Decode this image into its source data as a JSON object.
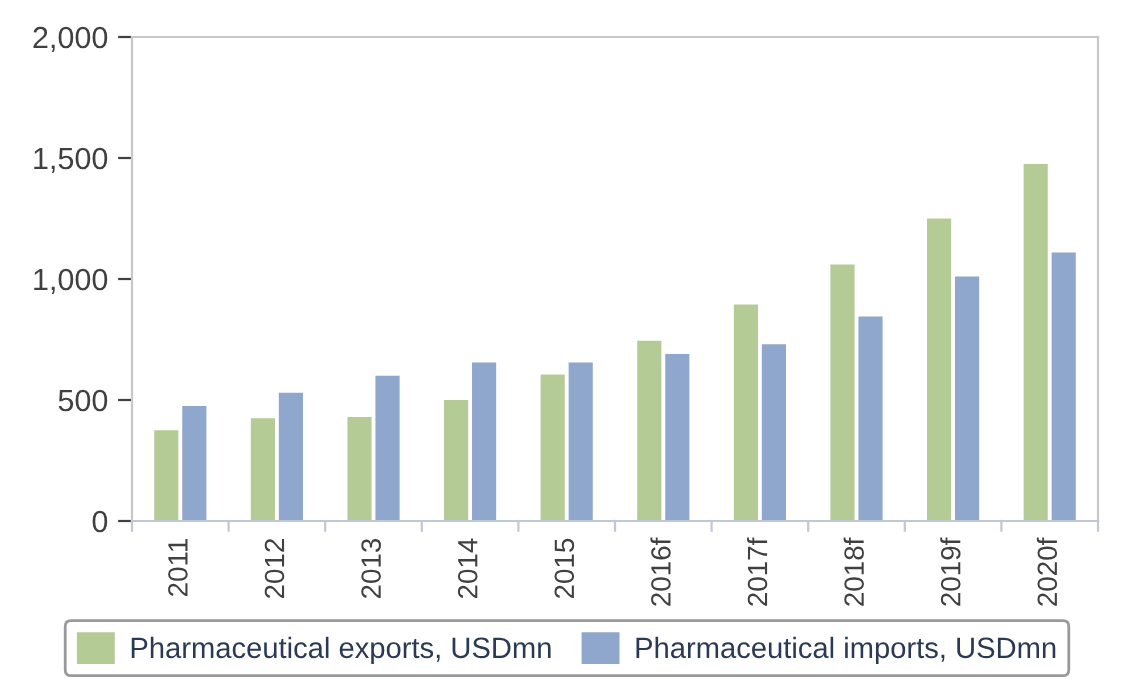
{
  "chart_data": {
    "type": "bar",
    "categories": [
      "2011",
      "2012",
      "2013",
      "2014",
      "2015",
      "2016f",
      "2017f",
      "2018f",
      "2019f",
      "2020f"
    ],
    "series": [
      {
        "name": "Pharmaceutical exports, USDmn",
        "color": "#b5cb95",
        "values": [
          375,
          425,
          430,
          500,
          605,
          745,
          895,
          1060,
          1250,
          1475
        ]
      },
      {
        "name": "Pharmaceutical imports, USDmn",
        "color": "#8fa7cc",
        "values": [
          475,
          530,
          600,
          655,
          655,
          690,
          730,
          845,
          1010,
          1110
        ]
      }
    ],
    "ylim": [
      0,
      2000
    ],
    "yticks": [
      {
        "value": 0,
        "label": "0"
      },
      {
        "value": 500,
        "label": "500"
      },
      {
        "value": 1000,
        "label": "1,000"
      },
      {
        "value": 1500,
        "label": "1,500"
      },
      {
        "value": 2000,
        "label": "2,000"
      }
    ],
    "grid": false,
    "legend": "bottom"
  }
}
